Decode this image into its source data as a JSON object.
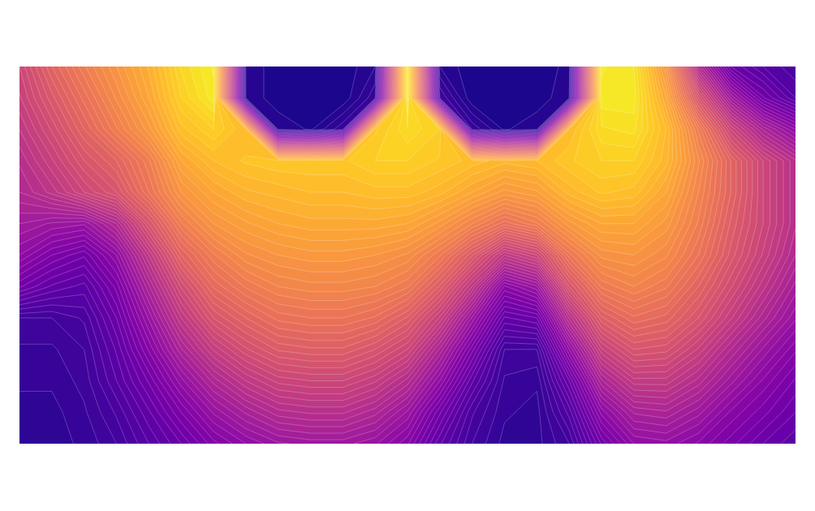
{
  "chart_data": {
    "type": "contour",
    "tick_labels": false,
    "zlim": [
      0,
      1
    ],
    "z": [
      [
        0.5,
        0.6,
        0.68,
        0.75,
        0.82,
        0.92,
        0.97,
        0.05,
        0.02,
        0.02,
        0.02,
        0.05,
        0.97,
        0.05,
        0.02,
        0.02,
        0.02,
        0.04,
        0.97,
        0.95,
        0.75,
        0.4,
        0.2,
        0.15,
        0.12
      ],
      [
        0.48,
        0.56,
        0.64,
        0.72,
        0.8,
        0.9,
        0.96,
        0.05,
        0.02,
        0.02,
        0.02,
        0.08,
        0.97,
        0.1,
        0.02,
        0.02,
        0.02,
        0.05,
        0.96,
        0.96,
        0.8,
        0.55,
        0.35,
        0.22,
        0.15
      ],
      [
        0.45,
        0.52,
        0.6,
        0.68,
        0.76,
        0.86,
        0.9,
        0.85,
        0.05,
        0.03,
        0.08,
        0.88,
        0.93,
        0.9,
        0.08,
        0.03,
        0.05,
        0.85,
        0.93,
        0.94,
        0.85,
        0.68,
        0.5,
        0.38,
        0.3
      ],
      [
        0.42,
        0.48,
        0.55,
        0.6,
        0.68,
        0.8,
        0.85,
        0.87,
        0.88,
        0.88,
        0.88,
        0.9,
        0.9,
        0.88,
        0.86,
        0.84,
        0.85,
        0.88,
        0.9,
        0.9,
        0.84,
        0.72,
        0.6,
        0.5,
        0.42
      ],
      [
        0.4,
        0.44,
        0.5,
        0.55,
        0.65,
        0.75,
        0.8,
        0.83,
        0.84,
        0.85,
        0.85,
        0.86,
        0.86,
        0.84,
        0.8,
        0.76,
        0.78,
        0.84,
        0.87,
        0.86,
        0.8,
        0.7,
        0.6,
        0.5,
        0.42
      ],
      [
        0.35,
        0.33,
        0.32,
        0.4,
        0.55,
        0.68,
        0.75,
        0.78,
        0.8,
        0.81,
        0.81,
        0.81,
        0.8,
        0.76,
        0.7,
        0.64,
        0.68,
        0.76,
        0.8,
        0.8,
        0.76,
        0.68,
        0.58,
        0.5,
        0.42
      ],
      [
        0.3,
        0.25,
        0.22,
        0.3,
        0.45,
        0.6,
        0.68,
        0.73,
        0.75,
        0.76,
        0.76,
        0.75,
        0.73,
        0.67,
        0.57,
        0.45,
        0.5,
        0.66,
        0.74,
        0.75,
        0.72,
        0.65,
        0.56,
        0.48,
        0.4
      ],
      [
        0.22,
        0.18,
        0.16,
        0.24,
        0.38,
        0.52,
        0.62,
        0.67,
        0.7,
        0.71,
        0.71,
        0.7,
        0.67,
        0.58,
        0.45,
        0.28,
        0.33,
        0.55,
        0.67,
        0.7,
        0.67,
        0.6,
        0.52,
        0.44,
        0.36
      ],
      [
        0.1,
        0.1,
        0.12,
        0.2,
        0.32,
        0.45,
        0.55,
        0.6,
        0.64,
        0.65,
        0.65,
        0.63,
        0.58,
        0.48,
        0.33,
        0.18,
        0.2,
        0.42,
        0.58,
        0.63,
        0.61,
        0.55,
        0.47,
        0.39,
        0.32
      ],
      [
        0.08,
        0.08,
        0.1,
        0.17,
        0.27,
        0.38,
        0.47,
        0.53,
        0.57,
        0.58,
        0.58,
        0.55,
        0.5,
        0.38,
        0.24,
        0.1,
        0.1,
        0.3,
        0.48,
        0.55,
        0.54,
        0.48,
        0.4,
        0.33,
        0.27
      ],
      [
        0.07,
        0.07,
        0.09,
        0.15,
        0.22,
        0.31,
        0.39,
        0.45,
        0.49,
        0.5,
        0.5,
        0.47,
        0.41,
        0.3,
        0.17,
        0.08,
        0.07,
        0.2,
        0.38,
        0.46,
        0.46,
        0.41,
        0.34,
        0.28,
        0.23
      ],
      [
        0.06,
        0.06,
        0.08,
        0.12,
        0.18,
        0.25,
        0.32,
        0.37,
        0.41,
        0.42,
        0.42,
        0.39,
        0.33,
        0.22,
        0.12,
        0.07,
        0.06,
        0.14,
        0.29,
        0.37,
        0.38,
        0.34,
        0.28,
        0.24,
        0.2
      ],
      [
        0.06,
        0.06,
        0.07,
        0.1,
        0.15,
        0.2,
        0.26,
        0.3,
        0.33,
        0.34,
        0.34,
        0.32,
        0.27,
        0.17,
        0.1,
        0.06,
        0.06,
        0.1,
        0.22,
        0.3,
        0.31,
        0.28,
        0.24,
        0.2,
        0.17
      ]
    ]
  }
}
